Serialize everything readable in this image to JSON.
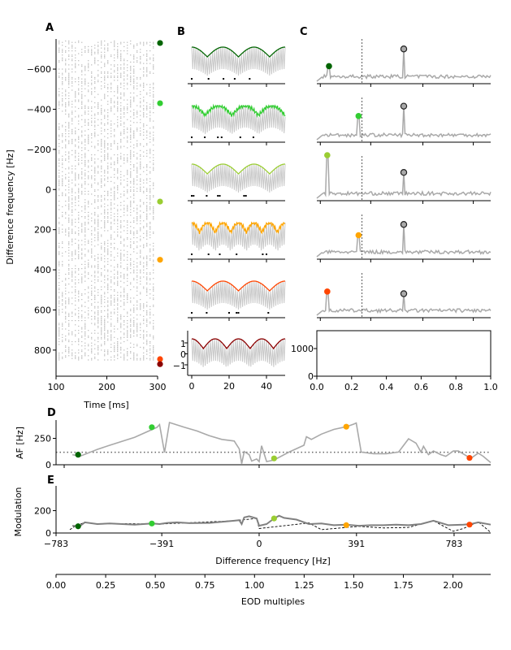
{
  "colors": {
    "grey_line": "#a9a9a9",
    "raster": "#c0c0c0",
    "dark_green": "#006400",
    "green": "#32cd32",
    "yellowgreen": "#9acd32",
    "orange": "#ffa500",
    "orangered": "#ff4500",
    "darkred": "#8b0000",
    "peak_marker": "#a9a9a9"
  },
  "chart_data": [
    {
      "panel": "A",
      "type": "scatter",
      "title": "",
      "xlabel": "Time [ms]",
      "ylabel": "Difference frequency [Hz]",
      "xlim": [
        100,
        300
      ],
      "ylim": [
        930,
        -750
      ],
      "xticks": [
        "100",
        "200",
        "300"
      ],
      "yticks": [
        "−600",
        "−400",
        "−200",
        "0",
        "200",
        "400",
        "600",
        "800"
      ],
      "ytick_values": [
        -600,
        -400,
        -200,
        0,
        200,
        400,
        600,
        800
      ],
      "description": "Spike raster across difference frequencies (grey dots)",
      "markers": [
        {
          "df": -730,
          "color": "dark_green"
        },
        {
          "df": -430,
          "color": "green"
        },
        {
          "df": 60,
          "color": "yellowgreen"
        },
        {
          "df": 350,
          "color": "orange"
        },
        {
          "df": 845,
          "color": "orangered"
        },
        {
          "df": 870,
          "color": "darkred"
        }
      ]
    },
    {
      "panel": "B",
      "type": "line",
      "xlabel": "",
      "ylabel": "",
      "xlim": [
        0,
        50
      ],
      "xticks": [
        "0",
        "20",
        "40"
      ],
      "bottom_yticks": [
        "1",
        "0",
        "−1"
      ],
      "ylim": [
        -2,
        2
      ],
      "traces": [
        {
          "color": "dark_green",
          "envelope_cycles": 3,
          "spikes_ms": [
            0,
            9,
            17,
            23,
            31
          ]
        },
        {
          "color": "green",
          "envelope_cycles": 3.5,
          "spikes_ms": [
            0,
            7,
            14,
            16,
            26,
            33
          ]
        },
        {
          "color": "yellowgreen",
          "envelope_cycles": 3,
          "spikes_ms": [
            0,
            1,
            8,
            14,
            15,
            28,
            29
          ]
        },
        {
          "color": "orange",
          "envelope_cycles": 6,
          "spikes_ms": [
            0,
            9,
            15,
            24,
            38,
            40
          ]
        },
        {
          "color": "orangered",
          "envelope_cycles": 3,
          "spikes_ms": [
            0,
            8,
            20,
            24,
            25,
            41
          ]
        },
        {
          "color": "darkred",
          "envelope_cycles": 4,
          "spikes_ms": []
        }
      ]
    },
    {
      "panel": "C",
      "type": "line",
      "xlabel": "",
      "xlim": [
        0,
        1.0
      ],
      "xticks": [
        "0.0",
        "0.2",
        "0.4",
        "0.6",
        "0.8",
        "1.0"
      ],
      "empty_axis_yticks": [
        "0",
        "1000"
      ],
      "dashed_line_x": 0.26,
      "eod_peak_x": 0.5,
      "traces": [
        {
          "color": "dark_green",
          "peak_x": 0.07,
          "peak_h": 0.35,
          "eod_h": 0.75
        },
        {
          "color": "green",
          "peak_x": 0.24,
          "peak_h": 0.55,
          "eod_h": 0.78
        },
        {
          "color": "yellowgreen",
          "peak_x": 0.06,
          "peak_h": 1.0,
          "eod_h": 0.6
        },
        {
          "color": "orange",
          "peak_x": 0.24,
          "peak_h": 0.5,
          "eod_h": 0.75
        },
        {
          "color": "orangered",
          "peak_x": 0.06,
          "peak_h": 0.55,
          "eod_h": 0.5
        }
      ]
    },
    {
      "panel": "D",
      "type": "line",
      "xlabel": "",
      "ylabel": "AF [Hz]",
      "xlim": [
        -783,
        930
      ],
      "ylim": [
        0,
        400
      ],
      "yticks": [
        "0",
        "250"
      ],
      "ytick_values": [
        0,
        250
      ],
      "hline_dotted": 118,
      "x": [
        -750,
        -720,
        -650,
        -600,
        -500,
        -410,
        -400,
        -380,
        -360,
        -340,
        -300,
        -250,
        -200,
        -150,
        -100,
        -80,
        -70,
        -60,
        -40,
        -30,
        -10,
        0,
        10,
        30,
        60,
        120,
        180,
        190,
        210,
        250,
        300,
        350,
        380,
        390,
        410,
        460,
        510,
        560,
        600,
        630,
        650,
        660,
        680,
        700,
        730,
        750,
        780,
        800,
        850,
        880,
        900,
        930
      ],
      "y": [
        95,
        80,
        145,
        185,
        260,
        355,
        380,
        115,
        400,
        385,
        355,
        320,
        275,
        240,
        225,
        150,
        10,
        125,
        95,
        35,
        55,
        30,
        180,
        30,
        45,
        120,
        185,
        265,
        240,
        290,
        335,
        360,
        385,
        395,
        120,
        105,
        105,
        120,
        245,
        205,
        120,
        175,
        95,
        130,
        95,
        80,
        130,
        130,
        60,
        110,
        80,
        20
      ],
      "markers": [
        {
          "x": -727,
          "y": 95,
          "color": "dark_green"
        },
        {
          "x": -431,
          "y": 355,
          "color": "green"
        },
        {
          "x": 60,
          "y": 60,
          "color": "yellowgreen"
        },
        {
          "x": 350,
          "y": 360,
          "color": "orange"
        },
        {
          "x": 845,
          "y": 65,
          "color": "orangered"
        }
      ]
    },
    {
      "panel": "E",
      "type": "line",
      "xlabel": "Difference frequency [Hz]",
      "ylabel": "Modulation",
      "xlim": [
        -783,
        930
      ],
      "ylim": [
        0,
        400
      ],
      "xticks": [
        "−783",
        "−391",
        "0",
        "391",
        "783"
      ],
      "xtick_values": [
        -783,
        -391,
        0,
        391,
        783
      ],
      "yticks": [
        "0",
        "200"
      ],
      "ytick_values": [
        0,
        200
      ],
      "x": [
        -750,
        -720,
        -700,
        -650,
        -600,
        -500,
        -430,
        -400,
        -370,
        -330,
        -280,
        -200,
        -150,
        -100,
        -80,
        -70,
        -60,
        -40,
        -10,
        0,
        30,
        60,
        80,
        100,
        150,
        200,
        250,
        300,
        350,
        400,
        450,
        500,
        550,
        600,
        650,
        700,
        730,
        760,
        820,
        850,
        880,
        930
      ],
      "y": [
        65,
        62,
        95,
        80,
        85,
        75,
        85,
        80,
        90,
        95,
        88,
        90,
        100,
        110,
        115,
        80,
        140,
        150,
        130,
        65,
        80,
        130,
        155,
        135,
        120,
        80,
        85,
        70,
        75,
        65,
        70,
        70,
        75,
        70,
        80,
        110,
        90,
        70,
        75,
        80,
        95,
        75
      ],
      "dashed_x": [
        -760,
        -740,
        -700,
        -650,
        -600,
        -400,
        -100,
        -10,
        0,
        200,
        250,
        400,
        500,
        600,
        700,
        750,
        780,
        820,
        880,
        930
      ],
      "dashed_y": [
        30,
        60,
        95,
        80,
        85,
        80,
        110,
        130,
        40,
        90,
        30,
        60,
        45,
        50,
        110,
        50,
        15,
        40,
        100,
        5
      ],
      "markers": [
        {
          "x": -727,
          "y": 60,
          "color": "dark_green"
        },
        {
          "x": -431,
          "y": 85,
          "color": "green"
        },
        {
          "x": 60,
          "y": 130,
          "color": "yellowgreen"
        },
        {
          "x": 350,
          "y": 70,
          "color": "orange"
        },
        {
          "x": 845,
          "y": 75,
          "color": "orangered"
        }
      ]
    },
    {
      "panel": "E-secondary-axis",
      "type": "line",
      "xlabel": "EOD multiples",
      "xlim": [
        0,
        2.19
      ],
      "xticks": [
        "0.00",
        "0.25",
        "0.50",
        "0.75",
        "1.00",
        "1.25",
        "1.50",
        "1.75",
        "2.00"
      ],
      "xtick_values": [
        0,
        0.25,
        0.5,
        0.75,
        1.0,
        1.25,
        1.5,
        1.75,
        2.0
      ]
    }
  ],
  "labels": {
    "panel_a": "A",
    "panel_b": "B",
    "panel_c": "C",
    "panel_d": "D",
    "panel_e": "E",
    "a_xlabel": "Time [ms]",
    "a_ylabel": "Difference frequency [Hz]",
    "d_ylabel": "AF [Hz]",
    "e_ylabel": "Modulation",
    "e_xlabel": "Difference frequency [Hz]",
    "eod_xlabel": "EOD multiples",
    "b_ytick_1": "1",
    "b_ytick_0": "0",
    "b_ytick_m1": "−1",
    "c_ytick_0": "0",
    "c_ytick_1000": "1000"
  }
}
